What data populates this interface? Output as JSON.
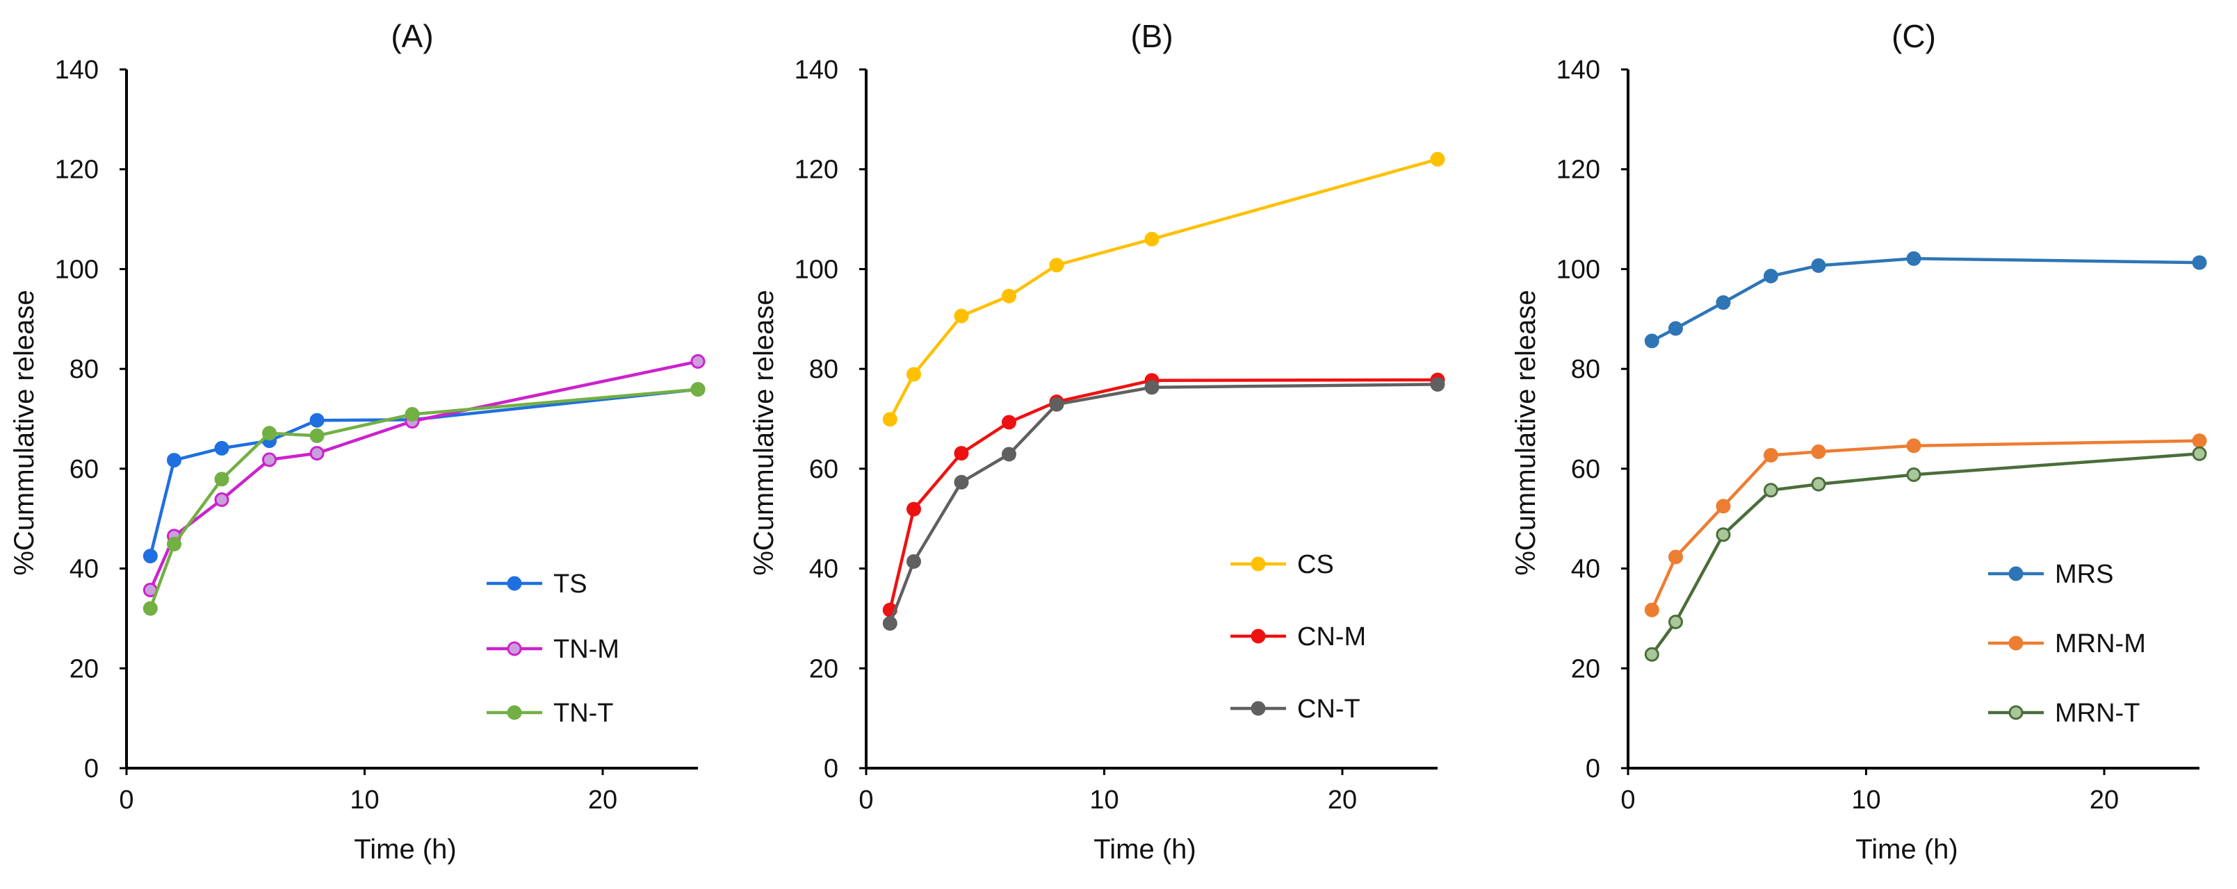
{
  "chart_data": [
    {
      "type": "line",
      "title": "(A)",
      "xlabel": "Time (h)",
      "ylabel": "%Cummulative  release",
      "xlim": [
        0,
        24
      ],
      "ylim": [
        0,
        140
      ],
      "xticks": [
        0,
        10,
        20
      ],
      "yticks": [
        0,
        20,
        40,
        60,
        80,
        100,
        120,
        140
      ],
      "legend_position": "bottom-right",
      "x": [
        1,
        2,
        4,
        6,
        8,
        12,
        24
      ],
      "series": [
        {
          "name": "TS",
          "color": "#1f6fe0",
          "fill": "#1f6fe0",
          "values": [
            42.5,
            61.7,
            64.1,
            65.6,
            69.7,
            69.8,
            75.9
          ]
        },
        {
          "name": "TN-M",
          "color": "#cc22cc",
          "fill": "#c9a0dc",
          "values": [
            35.7,
            46.5,
            53.8,
            61.8,
            63.1,
            69.5,
            81.5
          ]
        },
        {
          "name": "TN-T",
          "color": "#72b043",
          "fill": "#72b043",
          "values": [
            32.0,
            44.9,
            57.9,
            67.1,
            66.6,
            70.9,
            75.9
          ]
        }
      ]
    },
    {
      "type": "line",
      "title": "(B)",
      "xlabel": "Time (h)",
      "ylabel": "%Cummulative  release",
      "xlim": [
        0,
        24
      ],
      "ylim": [
        0,
        140
      ],
      "xticks": [
        0,
        10,
        20
      ],
      "yticks": [
        0,
        20,
        40,
        60,
        80,
        100,
        120,
        140
      ],
      "legend_position": "bottom-right",
      "x": [
        1,
        2,
        4,
        6,
        8,
        12,
        24
      ],
      "series": [
        {
          "name": "CS",
          "color": "#ffc000",
          "fill": "#ffc000",
          "values": [
            69.9,
            78.9,
            90.6,
            94.6,
            100.8,
            106.0,
            122.0
          ]
        },
        {
          "name": "CN-M",
          "color": "#ee1111",
          "fill": "#ee1111",
          "values": [
            31.7,
            51.9,
            63.1,
            69.3,
            73.4,
            77.7,
            77.8
          ]
        },
        {
          "name": "CN-T",
          "color": "#606060",
          "fill": "#606060",
          "values": [
            29.0,
            41.4,
            57.3,
            62.9,
            72.9,
            76.3,
            76.9
          ]
        }
      ]
    },
    {
      "type": "line",
      "title": "(C)",
      "xlabel": "Time (h)",
      "ylabel": "%Cummulative  release",
      "xlim": [
        0,
        24
      ],
      "ylim": [
        0,
        140
      ],
      "xticks": [
        0,
        10,
        20
      ],
      "yticks": [
        0,
        20,
        40,
        60,
        80,
        100,
        120,
        140
      ],
      "legend_position": "bottom-right",
      "x": [
        1,
        2,
        4,
        6,
        8,
        12,
        24
      ],
      "series": [
        {
          "name": "MRS",
          "color": "#2e75b6",
          "fill": "#2e75b6",
          "values": [
            85.6,
            88.1,
            93.3,
            98.6,
            100.7,
            102.1,
            101.3
          ]
        },
        {
          "name": "MRN-M",
          "color": "#ed7d31",
          "fill": "#ed7d31",
          "values": [
            31.7,
            42.3,
            52.5,
            62.7,
            63.4,
            64.6,
            65.6
          ]
        },
        {
          "name": "MRN-T",
          "color": "#4a6e3a",
          "fill": "#a9c79a",
          "values": [
            22.8,
            29.3,
            46.8,
            55.7,
            56.9,
            58.8,
            63.0
          ]
        }
      ]
    }
  ]
}
